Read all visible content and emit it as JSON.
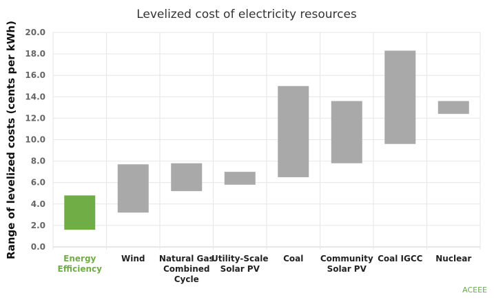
{
  "chart_data": {
    "type": "bar",
    "subtype": "floating-range",
    "title": "Levelized cost of electricity resources",
    "xlabel": "",
    "ylabel": "Range of levelized costs (cents per kWh)",
    "ylim": [
      0,
      20
    ],
    "y_ticks": [
      "0.0",
      "2.0",
      "4.0",
      "6.0",
      "8.0",
      "10.0",
      "12.0",
      "14.0",
      "16.0",
      "18.0",
      "20.0"
    ],
    "grid": true,
    "categories": [
      "Energy Efficiency",
      "Wind",
      "Natural Gas Combined Cycle",
      "Utility-Scale Solar PV",
      "Coal",
      "Community Solar PV",
      "Coal IGCC",
      "Nuclear"
    ],
    "category_lines": [
      [
        "Energy",
        "Efficiency"
      ],
      [
        "Wind"
      ],
      [
        "Natural Gas",
        "Combined",
        "Cycle"
      ],
      [
        "Utility-Scale",
        "Solar PV"
      ],
      [
        "Coal"
      ],
      [
        "Community",
        "Solar PV"
      ],
      [
        "Coal IGCC"
      ],
      [
        "Nuclear"
      ]
    ],
    "series": [
      {
        "low": [
          1.6,
          3.2,
          5.2,
          5.8,
          6.5,
          7.8,
          9.6,
          12.4
        ],
        "high": [
          4.8,
          7.7,
          7.8,
          7.0,
          15.0,
          13.6,
          18.3,
          13.6
        ]
      }
    ],
    "colors": {
      "highlight": "#70ad47",
      "default": "#a9a9a9",
      "highlight_label": "#70ad47",
      "grid": "#e6e6e6"
    },
    "highlight_index": 0,
    "source": "ACEEE"
  }
}
